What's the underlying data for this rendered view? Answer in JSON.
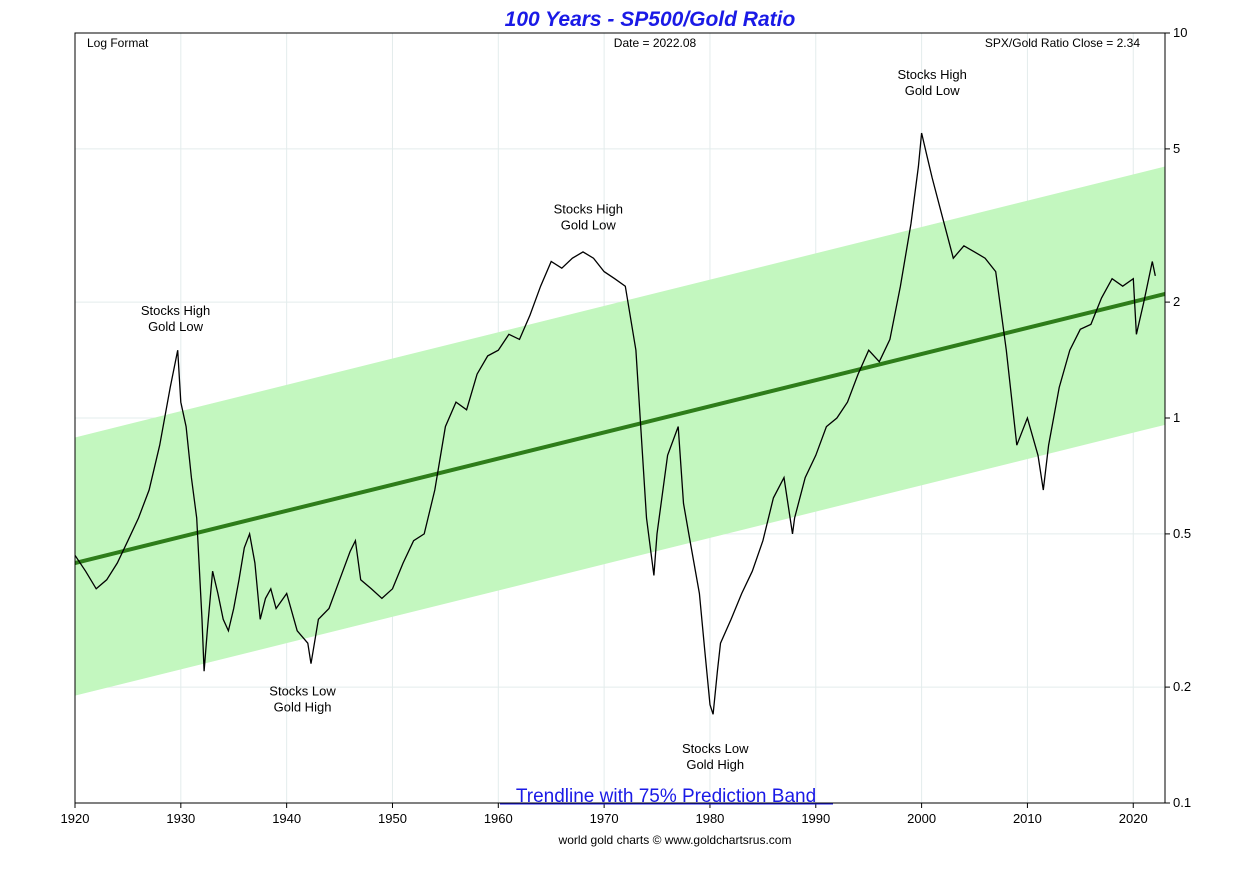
{
  "chart_data": {
    "type": "line",
    "title": "100 Years - SP500/Gold Ratio",
    "subtitle_left": "Log Format",
    "subtitle_center": "Date = 2022.08",
    "subtitle_right": "SPX/Gold Ratio Close = 2.34",
    "xlabel": "",
    "ylabel": "",
    "x_scale": "linear",
    "y_scale": "log",
    "xlim": [
      1920,
      2023
    ],
    "ylim": [
      0.1,
      10
    ],
    "x_ticks": [
      "1920",
      "1930",
      "1940",
      "1950",
      "1960",
      "1970",
      "1980",
      "1990",
      "2000",
      "2010",
      "2020"
    ],
    "y_ticks": [
      "0.1",
      "0.2",
      "0.5",
      "1",
      "2",
      "5",
      "10"
    ],
    "y_axis_side": "right",
    "grid": true,
    "colors": {
      "title": "#1a1ae6",
      "ratio_line": "#000000",
      "trendline": "#2e7d1a",
      "band": "#c3f7bf",
      "legend_text": "#1a1ae6",
      "grid": "#e3ecec"
    },
    "legend": {
      "label": "Trendline with 75% Prediction Band",
      "placement": "bottom-center"
    },
    "trendline": {
      "x": [
        1920,
        2023
      ],
      "y": [
        0.42,
        2.1
      ]
    },
    "band": {
      "x": [
        1920,
        2023
      ],
      "upper": [
        0.89,
        4.5
      ],
      "lower": [
        0.19,
        0.96
      ]
    },
    "series": [
      {
        "x": [
          1920,
          1921,
          1922,
          1923,
          1924,
          1925,
          1926,
          1927,
          1928,
          1929,
          1929.7,
          1930,
          1930.5,
          1931,
          1931.5,
          1932,
          1932.2,
          1932.5,
          1933,
          1933.5,
          1934,
          1934.5,
          1935,
          1935.5,
          1936,
          1936.5,
          1937,
          1937.5,
          1938,
          1938.5,
          1939,
          1940,
          1941,
          1942,
          1942.3,
          1943,
          1944,
          1945,
          1946,
          1946.5,
          1947,
          1948,
          1949,
          1950,
          1951,
          1952,
          1953,
          1954,
          1955,
          1956,
          1957,
          1958,
          1959,
          1960,
          1961,
          1962,
          1963,
          1964,
          1965,
          1966,
          1967,
          1968,
          1969,
          1970,
          1971,
          1972,
          1973,
          1974,
          1974.7,
          1975,
          1976,
          1977,
          1977.5,
          1978,
          1979,
          1979.5,
          1980,
          1980.3,
          1980.7,
          1981,
          1982,
          1983,
          1984,
          1985,
          1986,
          1987,
          1987.8,
          1988,
          1989,
          1990,
          1991,
          1992,
          1993,
          1994,
          1995,
          1996,
          1997,
          1998,
          1999,
          1999.7,
          2000,
          2000.5,
          2001,
          2002,
          2003,
          2004,
          2005,
          2006,
          2007,
          2008,
          2009,
          2010,
          2011,
          2011.5,
          2012,
          2013,
          2014,
          2015,
          2016,
          2017,
          2018,
          2019,
          2020,
          2020.3,
          2021,
          2021.8,
          2022.08
        ],
        "y": [
          0.44,
          0.4,
          0.36,
          0.38,
          0.42,
          0.48,
          0.55,
          0.65,
          0.85,
          1.2,
          1.5,
          1.1,
          0.95,
          0.7,
          0.55,
          0.3,
          0.22,
          0.28,
          0.4,
          0.35,
          0.3,
          0.28,
          0.32,
          0.38,
          0.46,
          0.5,
          0.42,
          0.3,
          0.34,
          0.36,
          0.32,
          0.35,
          0.28,
          0.26,
          0.23,
          0.3,
          0.32,
          0.38,
          0.45,
          0.48,
          0.38,
          0.36,
          0.34,
          0.36,
          0.42,
          0.48,
          0.5,
          0.65,
          0.95,
          1.1,
          1.05,
          1.3,
          1.45,
          1.5,
          1.65,
          1.6,
          1.85,
          2.2,
          2.55,
          2.45,
          2.6,
          2.7,
          2.6,
          2.4,
          2.3,
          2.2,
          1.5,
          0.55,
          0.39,
          0.5,
          0.8,
          0.95,
          0.6,
          0.5,
          0.35,
          0.25,
          0.18,
          0.17,
          0.22,
          0.26,
          0.3,
          0.35,
          0.4,
          0.48,
          0.62,
          0.7,
          0.5,
          0.55,
          0.7,
          0.8,
          0.95,
          1.0,
          1.1,
          1.3,
          1.5,
          1.4,
          1.6,
          2.2,
          3.2,
          4.5,
          5.5,
          4.8,
          4.2,
          3.3,
          2.6,
          2.8,
          2.7,
          2.6,
          2.4,
          1.5,
          0.85,
          1.0,
          0.8,
          0.65,
          0.85,
          1.2,
          1.5,
          1.7,
          1.75,
          2.05,
          2.3,
          2.2,
          2.3,
          1.65,
          2.0,
          2.55,
          2.34
        ]
      }
    ],
    "annotations": [
      {
        "line1": "Stocks High",
        "line2": "Gold Low",
        "x": 1929.5,
        "y": 1.85
      },
      {
        "line1": "Stocks Low",
        "line2": "Gold High",
        "x": 1941.5,
        "y": 0.19
      },
      {
        "line1": "Stocks High",
        "line2": "Gold Low",
        "x": 1968.5,
        "y": 3.4
      },
      {
        "line1": "Stocks Low",
        "line2": "Gold High",
        "x": 1980.5,
        "y": 0.135
      },
      {
        "line1": "Stocks High",
        "line2": "Gold Low",
        "x": 2001,
        "y": 7.6
      }
    ],
    "footer": "world gold charts © www.goldchartsrus.com"
  }
}
